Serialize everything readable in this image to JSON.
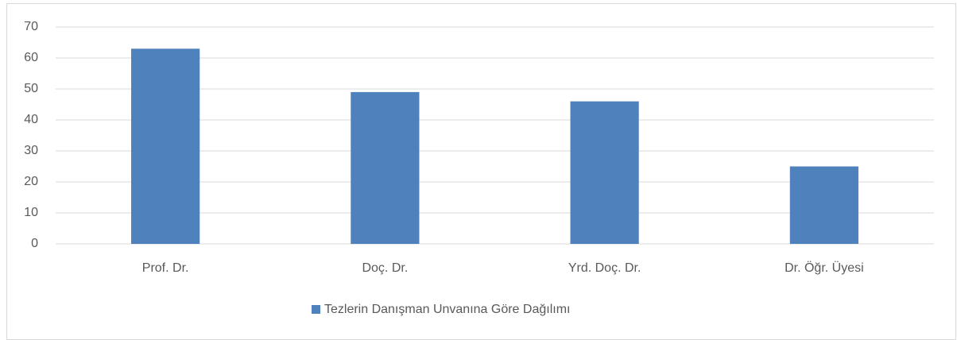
{
  "chart_data": {
    "type": "bar",
    "categories": [
      "Prof. Dr.",
      "Doç. Dr.",
      "Yrd. Doç. Dr.",
      "Dr. Öğr. Üyesi"
    ],
    "series": [
      {
        "name": "Tezlerin Danışman Unvanına Göre Dağılımı",
        "color": "#4f81bd",
        "values": [
          63,
          49,
          46,
          25
        ]
      }
    ],
    "ylim": [
      0,
      70
    ],
    "yticks": [
      0,
      10,
      20,
      30,
      40,
      50,
      60,
      70
    ],
    "grid": true,
    "legend": "bottom"
  }
}
